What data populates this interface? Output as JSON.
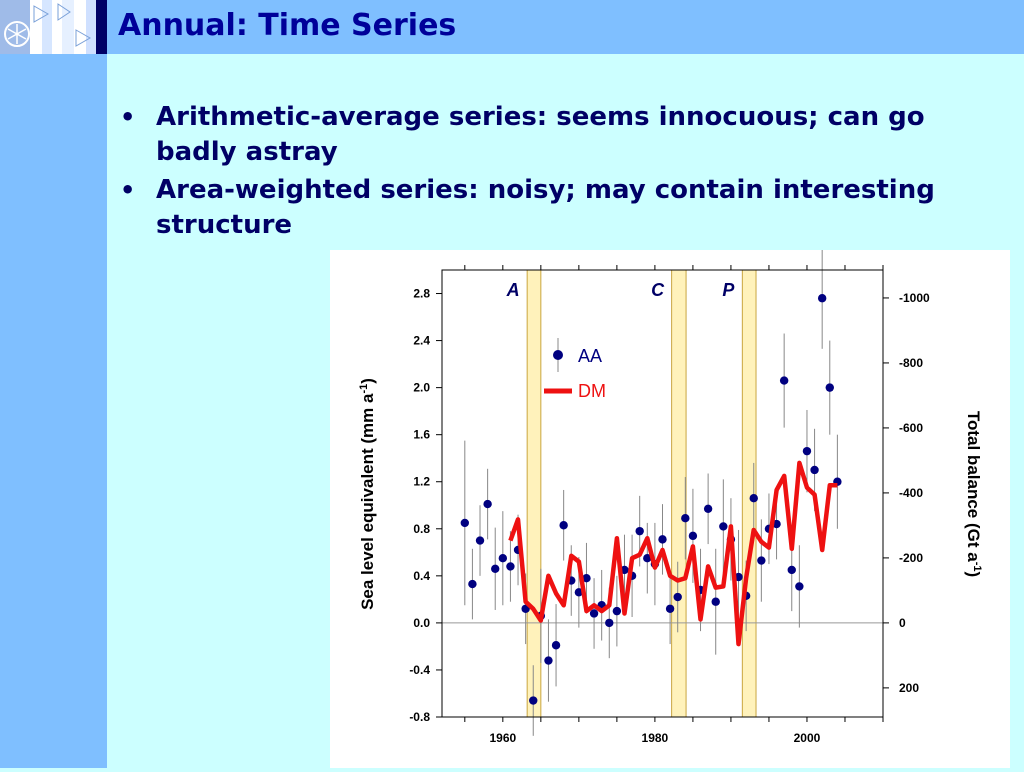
{
  "slide": {
    "title": "Annual: Time Series",
    "bullets": [
      "Arithmetic-average series: seems innocuous; can go badly astray",
      "Area-weighted series: noisy; may contain interesting structure"
    ]
  },
  "colors": {
    "band": "#7fbfff",
    "background": "#ccffff",
    "title": "#000099",
    "aa": "#000080",
    "dm": "#ee1111",
    "event_band": "#fff2bb"
  },
  "icons": {
    "logo": "snowflake-icon"
  },
  "chart_data": {
    "type": "scatter",
    "ylabel": "Sea level equivalent (mm a",
    "ylabel_sup": "-1",
    "ylabel_end": ")",
    "y2label": "Total balance (Gt a",
    "y2label_sup": "-1",
    "y2label_end": ")",
    "xlim": [
      1952,
      2010
    ],
    "ylim": [
      -0.8,
      3.0
    ],
    "y2lim": [
      289.6,
      -1086
    ],
    "x_ticks": [
      "1960",
      "1980",
      "2000"
    ],
    "y_ticks": [
      "2.8",
      "2.4",
      "2.0",
      "1.6",
      "1.2",
      "0.8",
      "0.4",
      "0.0",
      "-0.4",
      "-0.8"
    ],
    "y2_ticks": [
      "-1000",
      "-800",
      "-600",
      "-400",
      "-200",
      "0",
      "200"
    ],
    "events": [
      {
        "label": "A",
        "start": 1963.2,
        "end": 1965.0
      },
      {
        "label": "C",
        "start": 1982.2,
        "end": 1984.1
      },
      {
        "label": "P",
        "start": 1991.5,
        "end": 1993.3
      }
    ],
    "legend": {
      "placement": "top-center"
    },
    "series": [
      {
        "name": "AA",
        "style": "points with error bars",
        "x": [
          1955,
          1956,
          1957,
          1958,
          1959,
          1960,
          1961,
          1962,
          1963,
          1964,
          1965,
          1966,
          1967,
          1968,
          1969,
          1970,
          1971,
          1972,
          1973,
          1974,
          1975,
          1976,
          1977,
          1978,
          1979,
          1980,
          1981,
          1982,
          1983,
          1984,
          1985,
          1986,
          1987,
          1988,
          1989,
          1990,
          1991,
          1992,
          1993,
          1994,
          1995,
          1996,
          1997,
          1998,
          1999,
          2000,
          2001,
          2002,
          2003,
          2004
        ],
        "y": [
          0.85,
          0.33,
          0.7,
          1.01,
          0.46,
          0.55,
          0.48,
          0.62,
          0.12,
          -0.66,
          0.06,
          -0.32,
          -0.19,
          0.83,
          0.36,
          0.26,
          0.38,
          0.08,
          0.15,
          0.0,
          0.1,
          0.45,
          0.4,
          0.78,
          0.55,
          0.5,
          0.71,
          0.12,
          0.22,
          0.89,
          0.74,
          0.28,
          0.97,
          0.18,
          0.82,
          0.71,
          0.39,
          0.23,
          1.06,
          0.53,
          0.8,
          0.84,
          2.06,
          0.45,
          0.31,
          1.46,
          1.3,
          2.76,
          2.0,
          1.2
        ],
        "err": [
          0.7,
          0.3,
          0.3,
          0.3,
          0.35,
          0.4,
          0.3,
          0.3,
          0.3,
          0.3,
          0.4,
          0.35,
          0.35,
          0.3,
          0.3,
          0.3,
          0.3,
          0.3,
          0.3,
          0.3,
          0.3,
          0.3,
          0.35,
          0.3,
          0.3,
          0.35,
          0.3,
          0.3,
          0.3,
          0.35,
          0.4,
          0.35,
          0.3,
          0.45,
          0.4,
          0.35,
          0.4,
          0.3,
          0.3,
          0.35,
          0.3,
          0.3,
          0.4,
          0.35,
          0.35,
          0.35,
          0.35,
          0.43,
          0.4,
          0.4
        ]
      },
      {
        "name": "DM",
        "style": "line",
        "x": [
          1961,
          1962,
          1963,
          1964,
          1965,
          1966,
          1967,
          1968,
          1969,
          1970,
          1971,
          1972,
          1973,
          1974,
          1975,
          1976,
          1977,
          1978,
          1979,
          1980,
          1981,
          1982,
          1983,
          1984,
          1985,
          1986,
          1987,
          1988,
          1989,
          1990,
          1991,
          1992,
          1993,
          1994,
          1995,
          1996,
          1997,
          1998,
          1999,
          2000,
          2001,
          2002,
          2003,
          2004
        ],
        "y": [
          0.7,
          0.88,
          0.18,
          0.12,
          0.02,
          0.4,
          0.25,
          0.15,
          0.57,
          0.52,
          0.1,
          0.15,
          0.1,
          0.15,
          0.72,
          0.08,
          0.55,
          0.58,
          0.72,
          0.47,
          0.62,
          0.4,
          0.36,
          0.38,
          0.65,
          0.03,
          0.48,
          0.3,
          0.31,
          0.82,
          -0.18,
          0.38,
          0.79,
          0.69,
          0.64,
          1.13,
          1.25,
          0.63,
          1.36,
          1.15,
          1.09,
          0.62,
          1.17,
          1.17
        ]
      }
    ]
  }
}
